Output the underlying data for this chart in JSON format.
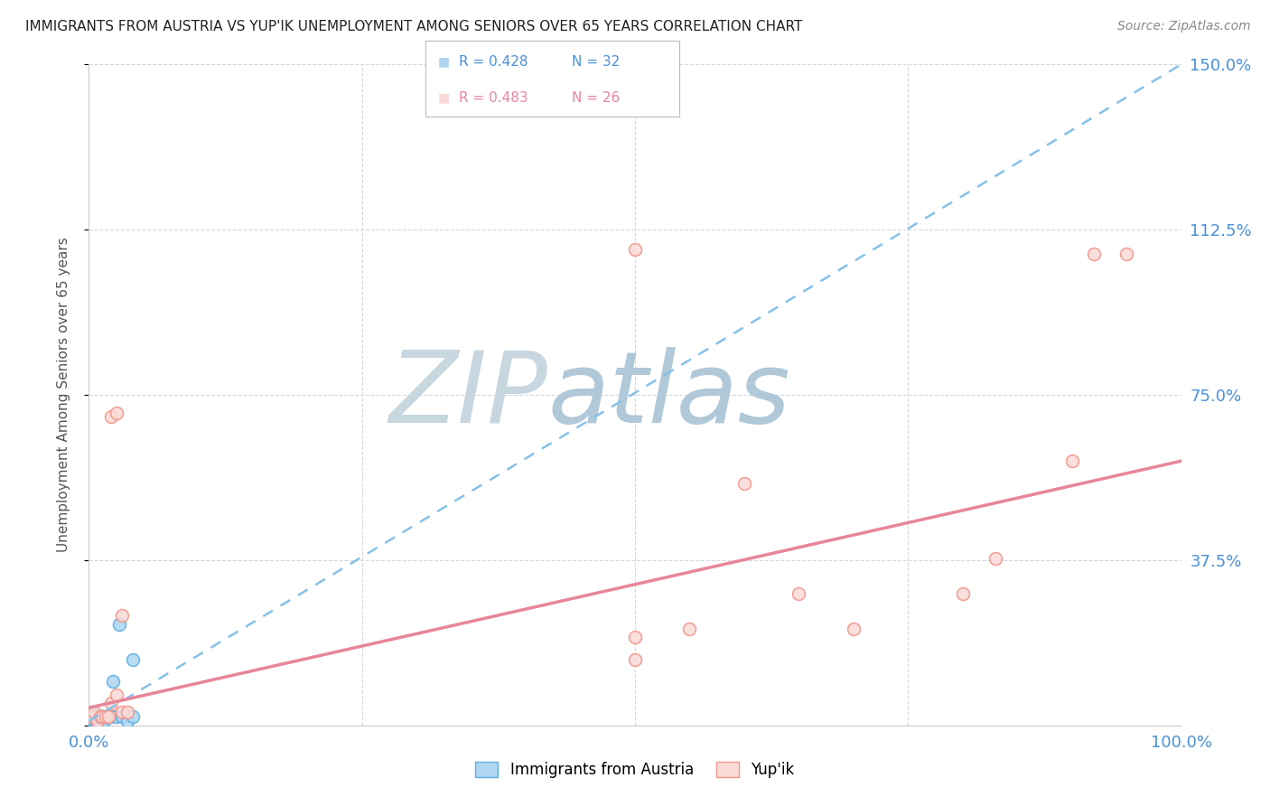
{
  "title": "IMMIGRANTS FROM AUSTRIA VS YUP'IK UNEMPLOYMENT AMONG SENIORS OVER 65 YEARS CORRELATION CHART",
  "source": "Source: ZipAtlas.com",
  "ylabel": "Unemployment Among Seniors over 65 years",
  "legend_label_blue": "Immigrants from Austria",
  "legend_label_pink": "Yup'ik",
  "legend_r_blue": "R = 0.428",
  "legend_n_blue": "N = 32",
  "legend_r_pink": "R = 0.483",
  "legend_n_pink": "N = 26",
  "xlim": [
    0,
    1.0
  ],
  "ylim": [
    0,
    1.5
  ],
  "xticks": [
    0.0,
    0.25,
    0.5,
    0.75,
    1.0
  ],
  "xticklabels": [
    "0.0%",
    "",
    "",
    "",
    "100.0%"
  ],
  "yticks": [
    0.0,
    0.375,
    0.75,
    1.125,
    1.5
  ],
  "yticklabels": [
    "",
    "37.5%",
    "75.0%",
    "112.5%",
    "150.0%"
  ],
  "blue_scatter_x": [
    0.002,
    0.003,
    0.003,
    0.004,
    0.004,
    0.005,
    0.005,
    0.006,
    0.006,
    0.007,
    0.007,
    0.008,
    0.008,
    0.009,
    0.01,
    0.01,
    0.011,
    0.012,
    0.013,
    0.014,
    0.015,
    0.016,
    0.017,
    0.018,
    0.02,
    0.022,
    0.025,
    0.028,
    0.03,
    0.035,
    0.04,
    0.04
  ],
  "blue_scatter_y": [
    0.02,
    0.03,
    0.01,
    0.02,
    0.01,
    0.02,
    0.01,
    0.02,
    0.01,
    0.02,
    0.01,
    0.02,
    0.01,
    0.02,
    0.02,
    0.01,
    0.02,
    0.02,
    0.02,
    0.01,
    0.02,
    0.02,
    0.02,
    0.02,
    0.02,
    0.1,
    0.02,
    0.23,
    0.02,
    0.01,
    0.15,
    0.02
  ],
  "pink_scatter_x": [
    0.003,
    0.005,
    0.008,
    0.01,
    0.012,
    0.015,
    0.018,
    0.02,
    0.025,
    0.03,
    0.035,
    0.02,
    0.025,
    0.03,
    0.5,
    0.55,
    0.5,
    0.6,
    0.65,
    0.7,
    0.8,
    0.83,
    0.9,
    0.92,
    0.95,
    0.5
  ],
  "pink_scatter_y": [
    0.02,
    0.03,
    0.01,
    0.02,
    0.02,
    0.02,
    0.02,
    0.05,
    0.07,
    0.03,
    0.03,
    0.7,
    0.71,
    0.25,
    0.2,
    0.22,
    1.08,
    0.55,
    0.3,
    0.22,
    0.3,
    0.38,
    0.6,
    1.07,
    1.07,
    0.15
  ],
  "blue_line_x0": 0.0,
  "blue_line_x1": 1.0,
  "blue_line_y0": 0.01,
  "blue_line_y1": 1.5,
  "pink_line_x0": 0.0,
  "pink_line_x1": 1.0,
  "pink_line_y0": 0.04,
  "pink_line_y1": 0.6,
  "color_blue_fill": "#AED6F1",
  "color_blue_edge": "#5DADE2",
  "color_pink_fill": "#FADBD8",
  "color_pink_edge": "#F1948A",
  "color_blue_trend": "#85C1E9",
  "color_pink_trend": "#E8859A",
  "watermark_zip_color": "#C8D6E0",
  "watermark_atlas_color": "#B0C8D8",
  "background_color": "#FFFFFF",
  "grid_color": "#D5D8DC",
  "title_color": "#222222",
  "axis_label_color": "#4A90D9",
  "scatter_size": 100
}
